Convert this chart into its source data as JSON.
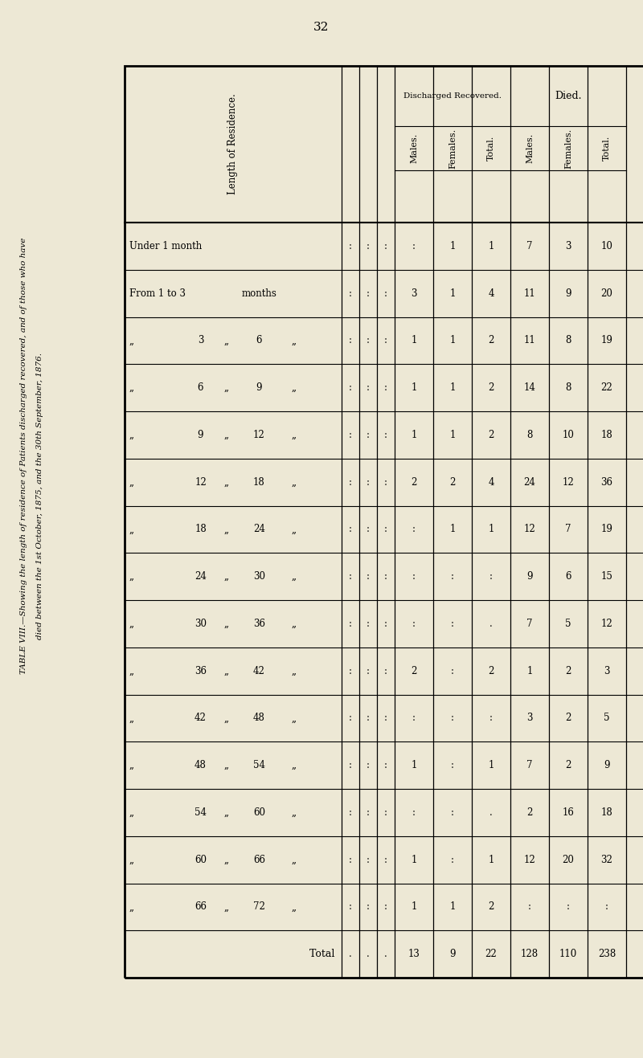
{
  "page_number": "32",
  "bg_color": "#ede8d5",
  "side_title_line1": "TABLE VIII.—Showing the length of residence of Patients discharged recovered, and of those who have",
  "side_title_line2": "died between the 1st October, 1875, and the 30th September, 1876.",
  "row_labels_col1": [
    "Under 1 month",
    "From 1 to 3 months",
    "„",
    "„",
    "„",
    "„",
    "„",
    "„",
    "„",
    "„",
    "„",
    "„",
    "„",
    "„",
    "„"
  ],
  "row_labels_col2": [
    "",
    "",
    "3",
    "6",
    "9",
    "12",
    "18",
    "24",
    "30",
    "36",
    "42",
    "48",
    "54",
    "60",
    "66"
  ],
  "row_labels_col3": [
    "",
    "",
    "„",
    "„",
    "„",
    "„",
    "„",
    "„",
    "„",
    "„",
    "„",
    "„",
    "„",
    "„",
    "„"
  ],
  "row_labels_col4": [
    "",
    "months",
    "6",
    "9",
    "12",
    "18",
    "24",
    "30",
    "36",
    "42",
    "48",
    "54",
    "60",
    "66",
    "72"
  ],
  "row_labels_col5": [
    "",
    "",
    "„",
    "„",
    "„",
    "„",
    "„",
    "„",
    "„",
    "„",
    "„",
    "„",
    "„",
    "„",
    "„"
  ],
  "dot_col1": [
    ":",
    ":",
    ":",
    ":",
    ":",
    ":",
    ":",
    ":",
    ":",
    ":",
    ":",
    ":",
    ":",
    ":",
    ":",
    ":"
  ],
  "dot_col2": [
    ":",
    ":",
    ":",
    ":",
    ":",
    ":",
    ":",
    ":",
    ":",
    ":",
    ":",
    ":",
    ":",
    ":",
    ":",
    ":"
  ],
  "dot_col3": [
    ":",
    ":",
    ":",
    ":",
    ":",
    ":",
    ":",
    ":",
    ":",
    ":",
    ":",
    ":",
    ":",
    ":",
    ":",
    ":"
  ],
  "discharged_males": [
    ":",
    "3",
    "1",
    "1",
    "1",
    "2",
    ":",
    ":",
    ":",
    "2",
    ":",
    "1",
    ":",
    "1",
    "1",
    "13"
  ],
  "discharged_females": [
    "1",
    "1",
    "1",
    "1",
    "1",
    "2",
    "1",
    ":",
    ":",
    ":",
    ":",
    ":",
    ":",
    ":",
    "1",
    "9"
  ],
  "discharged_total": [
    "1",
    "4",
    "2",
    "2",
    "2",
    "4",
    "1",
    ":",
    ".",
    "2",
    ":",
    "1",
    ".",
    "1",
    "2",
    "22"
  ],
  "died_males": [
    "7",
    "11",
    "11",
    "14",
    "8",
    "24",
    "12",
    "9",
    "7",
    "1",
    "3",
    "7",
    "2",
    "12",
    ":",
    "128"
  ],
  "died_females": [
    "3",
    "9",
    "8",
    "8",
    "10",
    "12",
    "7",
    "6",
    "5",
    "2",
    "2",
    "2",
    "16",
    "20",
    ":",
    "110"
  ],
  "died_total": [
    "10",
    "20",
    "19",
    "22",
    "18",
    "36",
    "19",
    "15",
    "12",
    "3",
    "5",
    "9",
    "18",
    "32",
    ":",
    "238"
  ],
  "n_data_rows": 15,
  "total_row_label": "Total"
}
